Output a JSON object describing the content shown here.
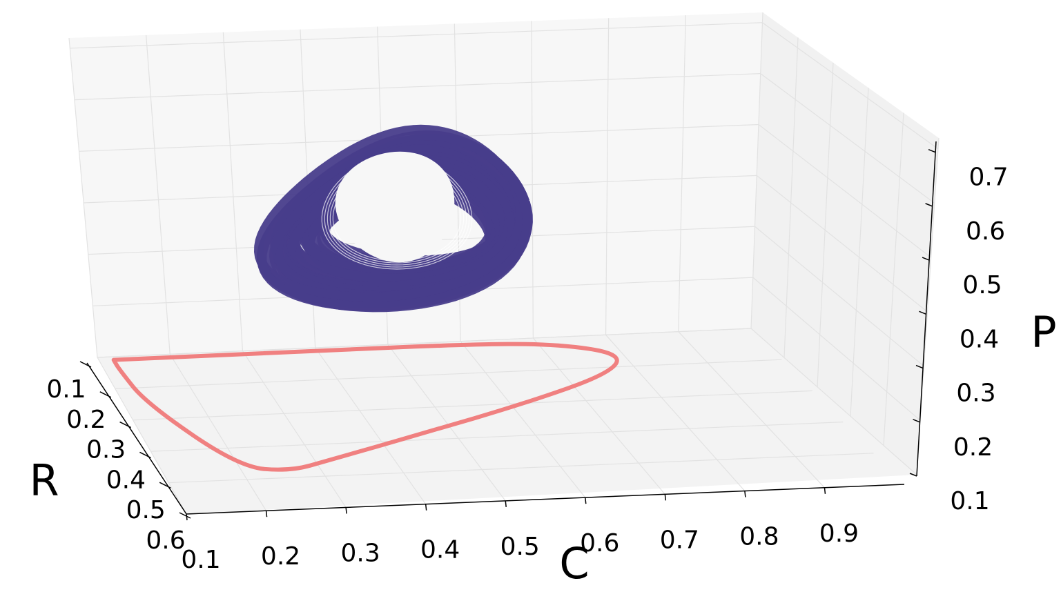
{
  "chart_data": {
    "type": "line",
    "projection": "3d",
    "axes": {
      "x": {
        "label": "C",
        "ticks": [
          "0.1",
          "0.2",
          "0.3",
          "0.4",
          "0.5",
          "0.6",
          "0.7",
          "0.8",
          "0.9"
        ],
        "range": [
          0.1,
          1.0
        ]
      },
      "y": {
        "label": "R",
        "ticks": [
          "0.1",
          "0.2",
          "0.3",
          "0.4",
          "0.5",
          "0.6"
        ],
        "range": [
          0.1,
          0.6
        ]
      },
      "z": {
        "label": "P",
        "ticks": [
          "0.1",
          "0.2",
          "0.3",
          "0.4",
          "0.5",
          "0.6",
          "0.7"
        ],
        "range": [
          0.1,
          0.72
        ]
      }
    },
    "grid": true,
    "series": [
      {
        "kind": "attractor-3d",
        "color": "#483d8b",
        "center": {
          "C": 0.45,
          "R": 0.2,
          "P": 0.55
        },
        "loop_cycles": 26
      },
      {
        "kind": "floor-projection",
        "color": "#f08080",
        "points": [
          [
            0.12,
            0.11
          ],
          [
            0.22,
            0.11
          ],
          [
            0.4,
            0.11
          ],
          [
            0.6,
            0.11
          ],
          [
            0.72,
            0.12
          ],
          [
            0.8,
            0.16
          ],
          [
            0.76,
            0.22
          ],
          [
            0.62,
            0.3
          ],
          [
            0.46,
            0.38
          ],
          [
            0.32,
            0.45
          ],
          [
            0.26,
            0.48
          ],
          [
            0.2,
            0.46
          ],
          [
            0.13,
            0.25
          ],
          [
            0.12,
            0.14
          ],
          [
            0.12,
            0.11
          ]
        ]
      }
    ]
  }
}
